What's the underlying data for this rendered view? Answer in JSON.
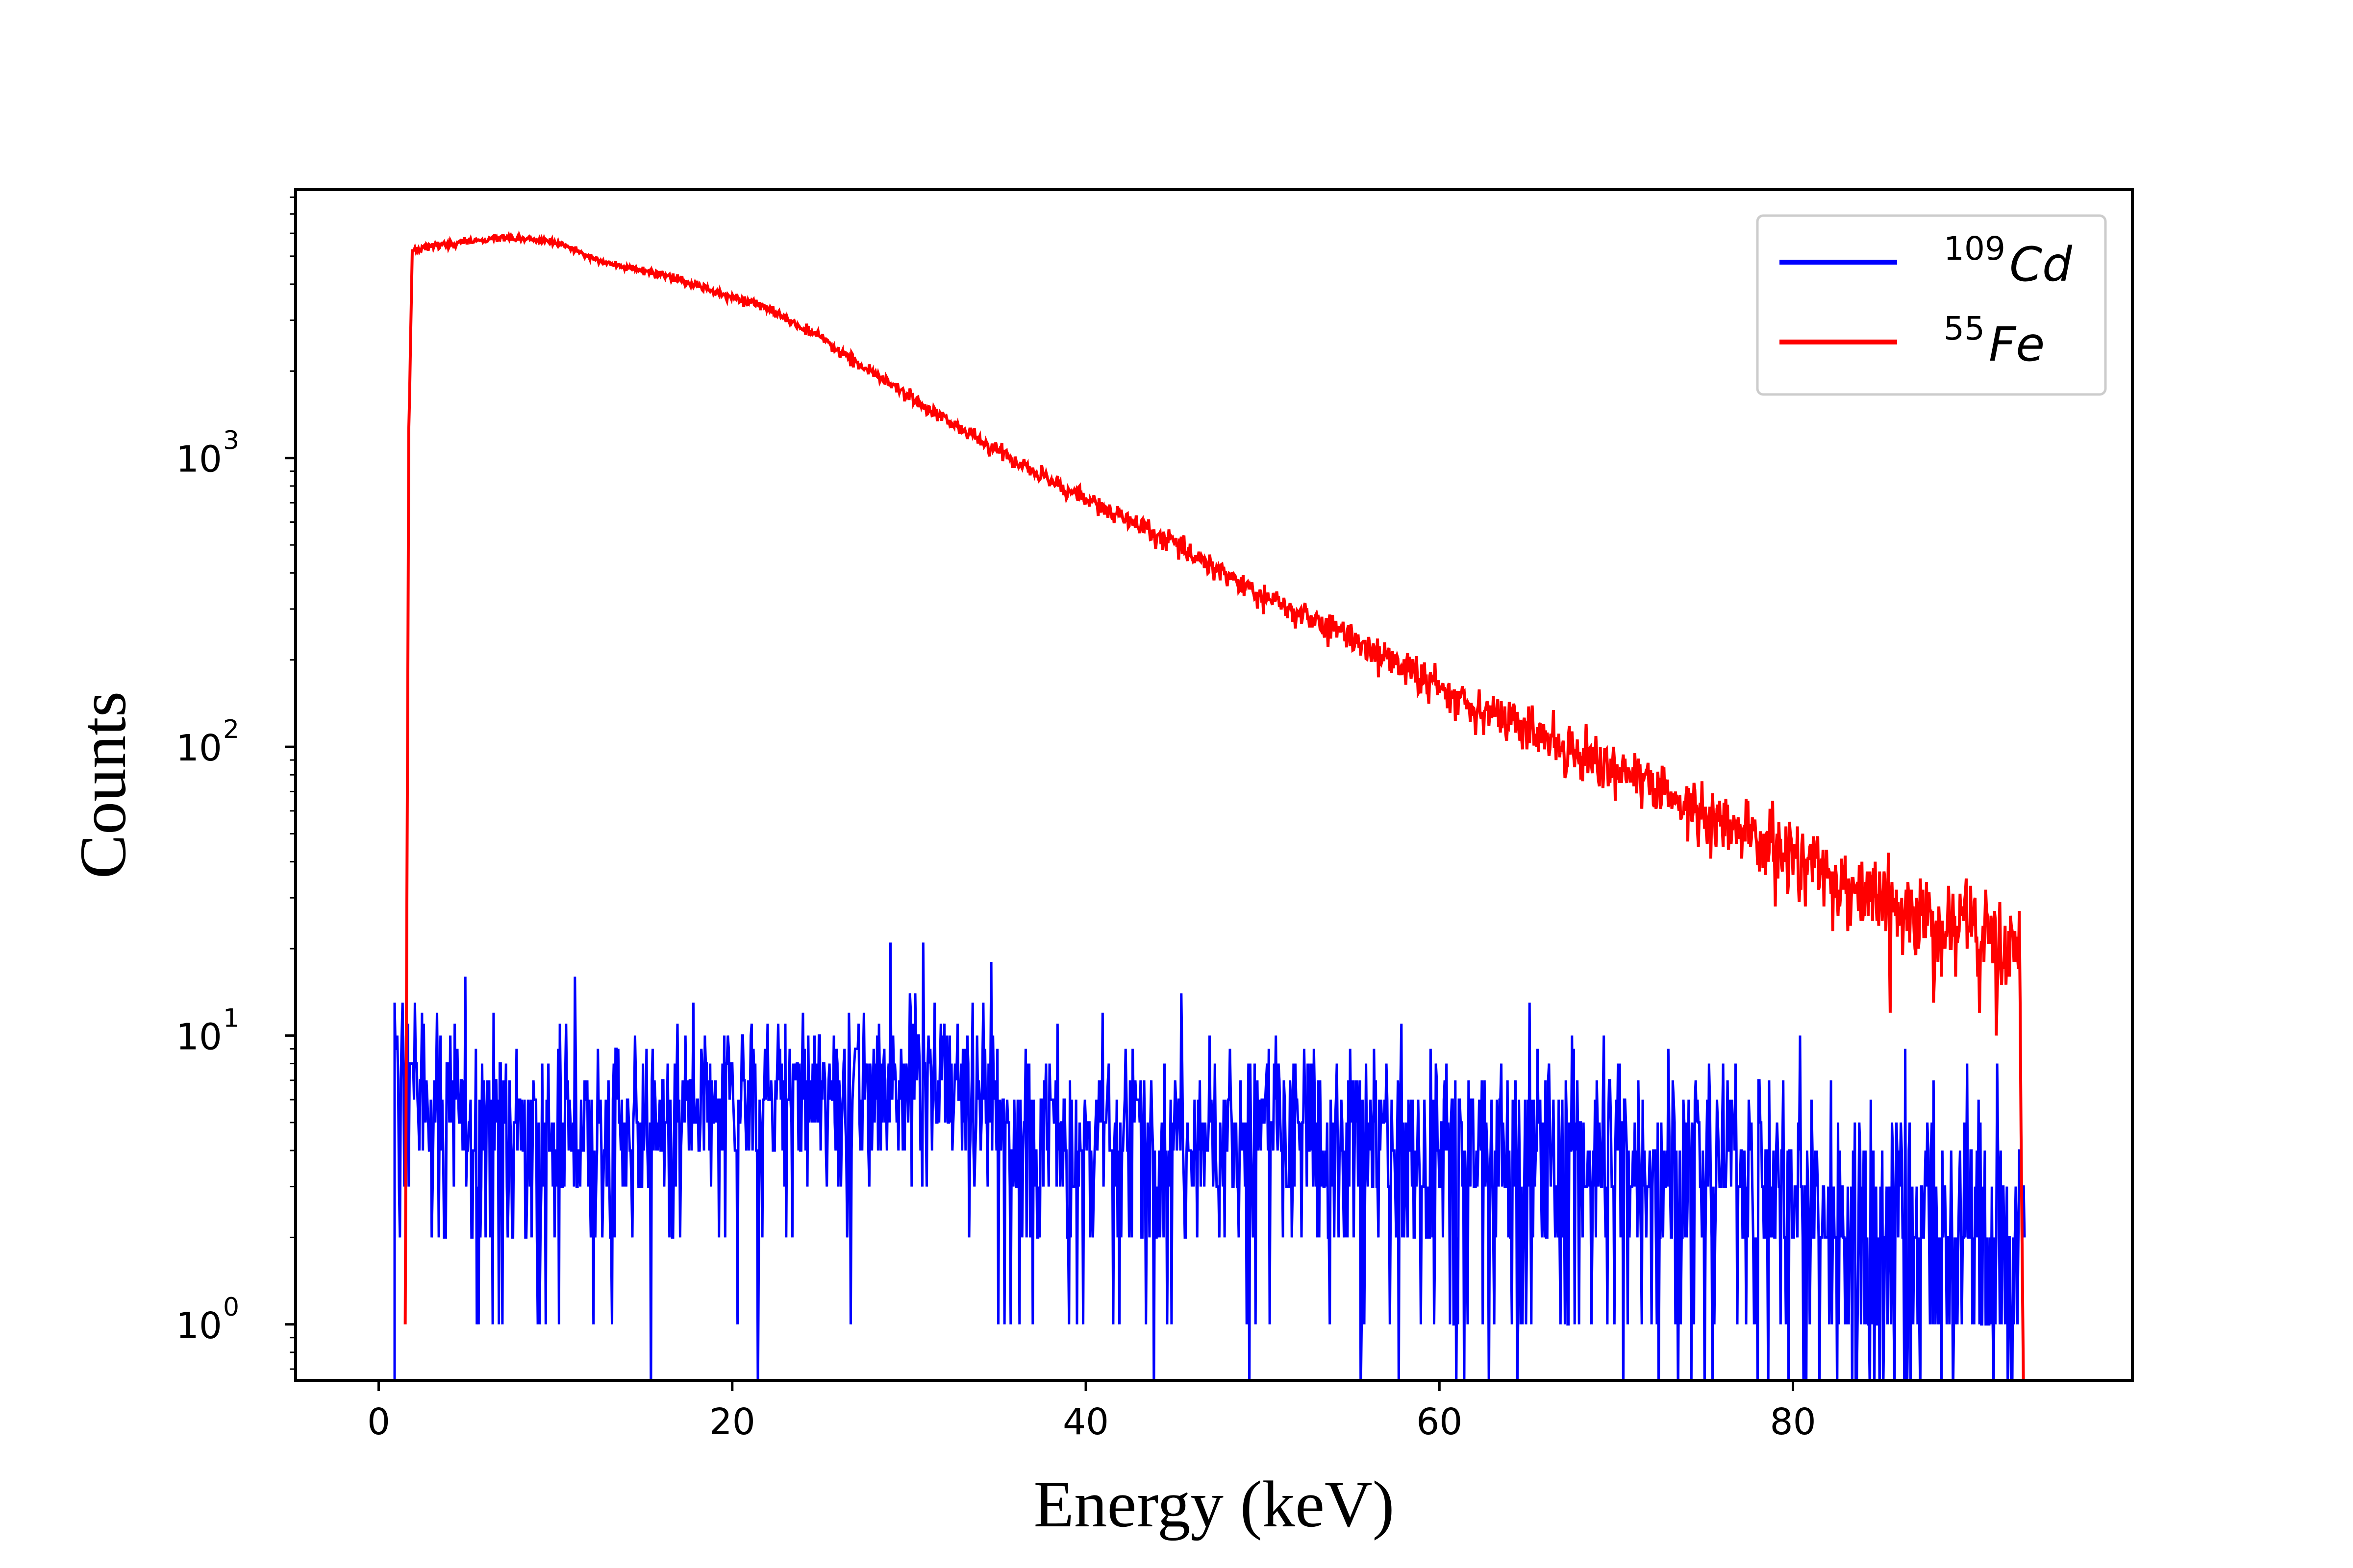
{
  "chart_data": {
    "type": "line",
    "xlabel": "Energy (keV)",
    "ylabel": "Counts",
    "xlim": [
      -4.7,
      99.2
    ],
    "ylim": [
      0.64,
      8500
    ],
    "yscale": "log",
    "grid": false,
    "legend_position": "top-right",
    "x_ticks": [
      {
        "value": 0,
        "label": "0"
      },
      {
        "value": 20,
        "label": "20"
      },
      {
        "value": 40,
        "label": "40"
      },
      {
        "value": 60,
        "label": "60"
      },
      {
        "value": 80,
        "label": "80"
      }
    ],
    "y_ticks": [
      {
        "value": 1,
        "base": "10",
        "exp": "0"
      },
      {
        "value": 10,
        "base": "10",
        "exp": "1"
      },
      {
        "value": 100,
        "base": "10",
        "exp": "2"
      },
      {
        "value": 1000,
        "base": "10",
        "exp": "3"
      }
    ],
    "series": [
      {
        "name": "Cd",
        "name_sup": "109",
        "color": "#0000ff",
        "description": "Noisy low-count spectrum fluctuating between 0 and ~17 counts over 0.9–93 keV",
        "x_range": [
          0.9,
          93.1
        ],
        "envelope": [
          [
            0.9,
            8
          ],
          [
            2,
            7
          ],
          [
            5,
            5
          ],
          [
            10,
            5
          ],
          [
            15,
            5
          ],
          [
            20,
            6
          ],
          [
            25,
            6.5
          ],
          [
            30,
            7.5
          ],
          [
            33,
            7
          ],
          [
            36,
            5
          ],
          [
            40,
            4.5
          ],
          [
            50,
            4.5
          ],
          [
            60,
            4.2
          ],
          [
            70,
            4
          ],
          [
            78,
            3.5
          ],
          [
            82,
            2.5
          ],
          [
            86,
            2.3
          ],
          [
            90,
            2.2
          ],
          [
            93,
            2
          ]
        ]
      },
      {
        "name": "Fe",
        "name_sup": "55",
        "color": "#ff0000",
        "description": "Sharp rise at ~1.8 keV then exponential decay to ~20 counts at 93 keV",
        "x_range": [
          1.5,
          93.1
        ],
        "points": [
          [
            1.5,
            1
          ],
          [
            1.7,
            1200
          ],
          [
            1.9,
            5200
          ],
          [
            2,
            5300
          ],
          [
            4,
            5500
          ],
          [
            7,
            5800
          ],
          [
            10,
            5600
          ],
          [
            13,
            4700
          ],
          [
            16,
            4300
          ],
          [
            19,
            3800
          ],
          [
            22,
            3300
          ],
          [
            25,
            2600
          ],
          [
            28,
            1950
          ],
          [
            31,
            1500
          ],
          [
            34,
            1150
          ],
          [
            37,
            900
          ],
          [
            40,
            720
          ],
          [
            43,
            580
          ],
          [
            46,
            470
          ],
          [
            50,
            330
          ],
          [
            55,
            240
          ],
          [
            60,
            160
          ],
          [
            65,
            115
          ],
          [
            70,
            85
          ],
          [
            75,
            58
          ],
          [
            80,
            42
          ],
          [
            85,
            30
          ],
          [
            90,
            23
          ],
          [
            92.8,
            21
          ],
          [
            93.05,
            0.5
          ]
        ]
      }
    ]
  }
}
